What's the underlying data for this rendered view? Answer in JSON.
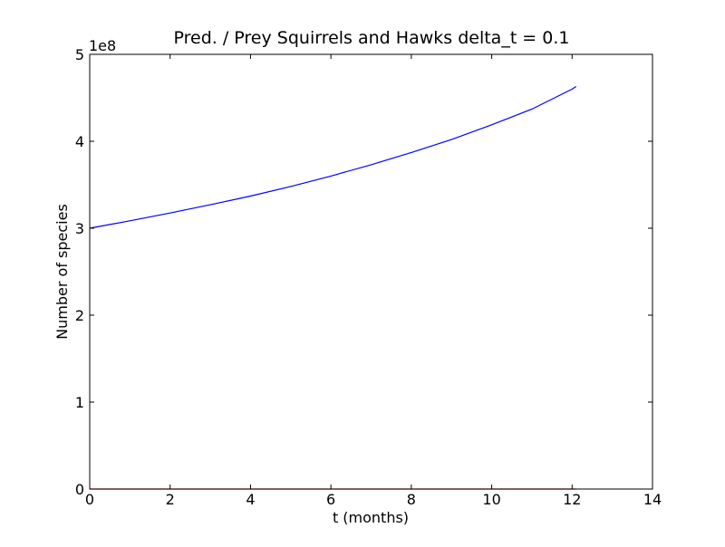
{
  "chart_data": {
    "type": "line",
    "title": "Pred. / Prey Squirrels and Hawks delta_t = 0.1",
    "xlabel": "t (months)",
    "ylabel": "Number of species",
    "y_offset_label": "1e8",
    "xlim": [
      0,
      14
    ],
    "ylim": [
      0,
      5
    ],
    "y_unit_multiplier": 100000000,
    "x_ticks": [
      0,
      2,
      4,
      6,
      8,
      10,
      12,
      14
    ],
    "y_ticks": [
      0,
      1,
      2,
      3,
      4,
      5
    ],
    "x_tick_labels": [
      "0",
      "2",
      "4",
      "6",
      "8",
      "10",
      "12",
      "14"
    ],
    "y_tick_labels": [
      "0",
      "1",
      "2",
      "3",
      "4",
      "5"
    ],
    "grid": false,
    "legend": "none",
    "series": [
      {
        "color": "#0000ff",
        "x": [
          0,
          1,
          2,
          3,
          4,
          5,
          6,
          7,
          8,
          9,
          10,
          11,
          12,
          12.1
        ],
        "y": [
          3.0,
          3.085,
          3.175,
          3.27,
          3.37,
          3.48,
          3.6,
          3.73,
          3.87,
          4.02,
          4.19,
          4.37,
          4.6,
          4.63
        ]
      },
      {
        "color": "#ff0000",
        "x": [
          0,
          12.1
        ],
        "y": [
          0,
          0
        ]
      }
    ]
  }
}
